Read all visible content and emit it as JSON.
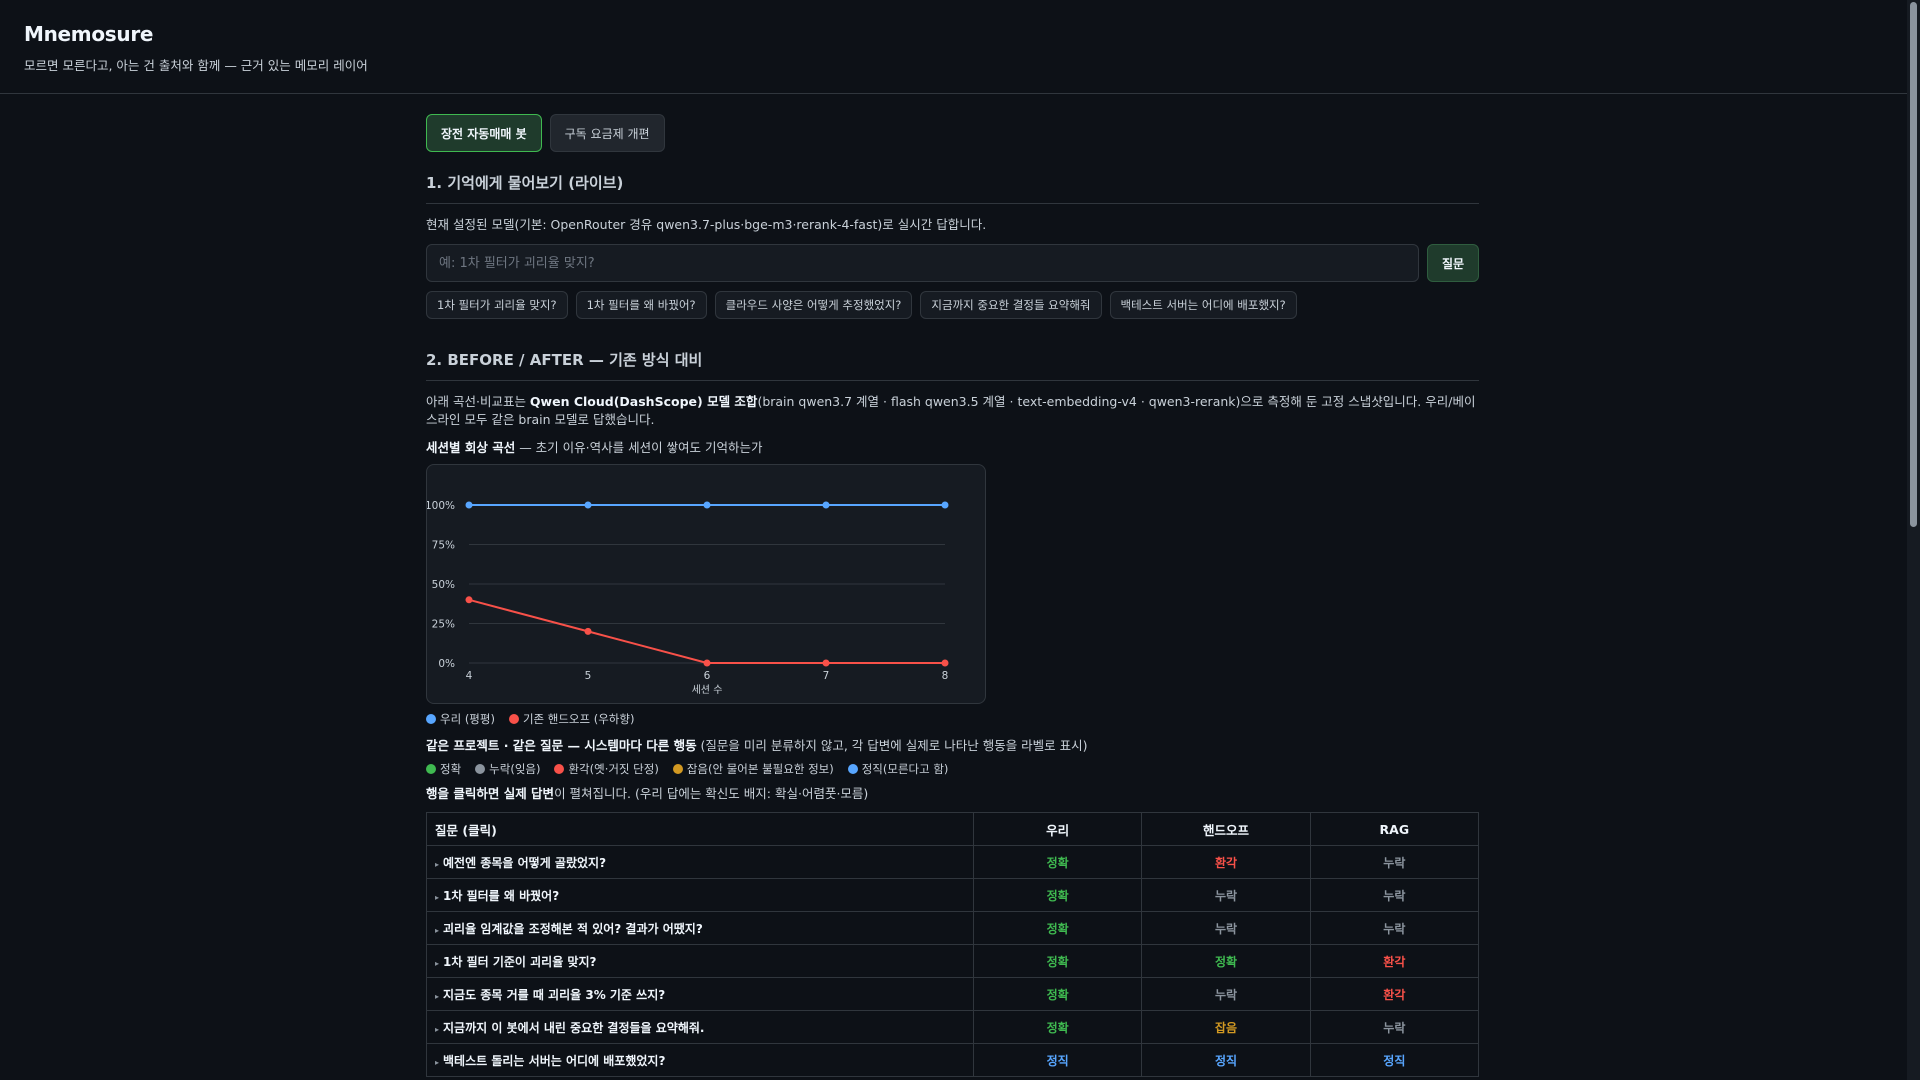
{
  "app": {
    "brand": "Mnemosure",
    "tagline": "모르면 모른다고, 아는 건 출처와 함께 — 근거 있는 메모리 레이어"
  },
  "tabs": [
    {
      "label": "장전 자동매매 봇",
      "active": true
    },
    {
      "label": "구독 요금제 개편",
      "active": false
    }
  ],
  "section1": {
    "title": "1. 기억에게 물어보기 (라이브)",
    "desc": "현재 설정된 모델(기본: OpenRouter 경유 qwen3.7-plus·bge-m3·rerank-4-fast)로 실시간 답합니다.",
    "input_placeholder": "예: 1차 필터가 괴리율 맞지?",
    "ask_label": "질문",
    "chips": [
      "1차 필터가 괴리율 맞지?",
      "1차 필터를 왜 바꿨어?",
      "클라우드 사양은 어떻게 추정했었지?",
      "지금까지 중요한 결정들 요약해줘",
      "백테스트 서버는 어디에 배포했지?"
    ]
  },
  "section2": {
    "title": "2. BEFORE / AFTER — 기존 방식 대비",
    "desc_pre": "아래 곡선·비교표는 ",
    "desc_bold": "Qwen Cloud(DashScope) 모델 조합",
    "desc_post": "(brain qwen3.7 계열 · flash qwen3.5 계열 · text-embedding-v4 · qwen3-rerank)으로 측정해 둔 고정 스냅샷입니다. 우리/베이스라인 모두 같은 brain 모델로 답했습니다.",
    "curve_label_bold": "세션별 회상 곡선",
    "curve_label_rest": " — 초기 이유·역사를 세션이 쌓여도 기억하는가",
    "compare_bold": "같은 프로젝트 · 같은 질문 — 시스템마다 다른 행동",
    "compare_rest": " (질문을 미리 분류하지 않고, 각 답변에 실제로 나타난 행동을 라벨로 표시)",
    "click_bold": "행을 클릭하면 실제 답변",
    "click_rest": "이 펼쳐집니다. (우리 답에는 확신도 배지: 확실·어렴풋·모름)"
  },
  "chart_data": {
    "type": "line",
    "x": [
      4,
      5,
      6,
      7,
      8
    ],
    "xlabel": "세션 수",
    "ylabel": "",
    "ylim": [
      0,
      100
    ],
    "yticks": [
      "0%",
      "25%",
      "50%",
      "75%",
      "100%"
    ],
    "grid": true,
    "series": [
      {
        "name": "우리 (평평)",
        "color": "#58a6ff",
        "values": [
          100,
          100,
          100,
          100,
          100
        ]
      },
      {
        "name": "기존 핸드오프 (우하향)",
        "color": "#f85149",
        "values": [
          40,
          20,
          0,
          0,
          0
        ]
      }
    ]
  },
  "behavior_legend": [
    {
      "label": "정확",
      "color": "#3fb950"
    },
    {
      "label": "누락(잊음)",
      "color": "#8b949e"
    },
    {
      "label": "환각(옛·거짓 단정)",
      "color": "#f85149"
    },
    {
      "label": "잡음(안 물어본 불필요한 정보)",
      "color": "#d29922"
    },
    {
      "label": "정직(모른다고 함)",
      "color": "#58a6ff"
    }
  ],
  "table": {
    "headers": [
      "질문 (클릭)",
      "우리",
      "핸드오프",
      "RAG"
    ],
    "rows": [
      {
        "q": "예전엔 종목을 어떻게 골랐었지?",
        "vals": [
          "정확",
          "환각",
          "누락"
        ]
      },
      {
        "q": "1차 필터를 왜 바꿨어?",
        "vals": [
          "정확",
          "누락",
          "누락"
        ]
      },
      {
        "q": "괴리율 임계값을 조정해본 적 있어? 결과가 어땠지?",
        "vals": [
          "정확",
          "누락",
          "누락"
        ]
      },
      {
        "q": "1차 필터 기준이 괴리율 맞지?",
        "vals": [
          "정확",
          "정확",
          "환각"
        ]
      },
      {
        "q": "지금도 종목 거를 때 괴리율 3% 기준 쓰지?",
        "vals": [
          "정확",
          "누락",
          "환각"
        ]
      },
      {
        "q": "지금까지 이 봇에서 내린 중요한 결정들을 요약해줘.",
        "vals": [
          "정확",
          "잡음",
          "누락"
        ]
      },
      {
        "q": "백테스트 돌리는 서버는 어디에 배포했었지?",
        "vals": [
          "정직",
          "정직",
          "정직"
        ]
      }
    ]
  },
  "label_colors": {
    "정확": "#3fb950",
    "누락": "#8b949e",
    "환각": "#f85149",
    "잡음": "#d29922",
    "정직": "#58a6ff"
  }
}
